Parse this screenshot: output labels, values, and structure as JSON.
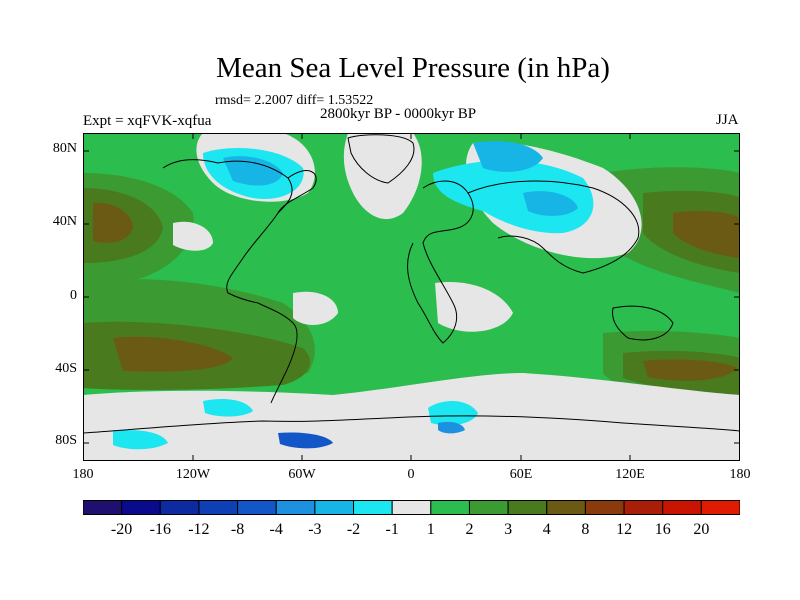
{
  "title": "Mean Sea Level Pressure (in hPa)",
  "stats": "rmsd= 2.2007 diff= 1.53522",
  "subtitle": "2800kyr BP - 0000kyr BP",
  "experiment": "Expt = xqFVK-xqfua",
  "season": "JJA",
  "lat_ticks": [
    "80N",
    "40N",
    "0",
    "40S",
    "80S"
  ],
  "lon_ticks": [
    "180",
    "120W",
    "60W",
    "0",
    "60E",
    "120E",
    "180"
  ],
  "colorbar": {
    "labels": [
      "-20",
      "-16",
      "-12",
      "-8",
      "-4",
      "-3",
      "-2",
      "-1",
      "1",
      "2",
      "3",
      "4",
      "8",
      "12",
      "16",
      "20"
    ],
    "colors": [
      "#1f1070",
      "#0a0a8c",
      "#0e2aa0",
      "#0f3fb4",
      "#1356c8",
      "#1e90e0",
      "#17b4e6",
      "#1ce6f0",
      "#e6e6e6",
      "#2bbd4d",
      "#3c9a32",
      "#4a7a1e",
      "#6b5a14",
      "#8a3a0c",
      "#a81e08",
      "#c81400",
      "#e01c00"
    ]
  },
  "colors": {
    "green": "#2bbd4d",
    "darkgreen": "#3c9a32",
    "olive": "#4a7a1e",
    "brown": "#6b5a14",
    "white": "#e6e6e6",
    "cyan": "#1ce6f0",
    "lightblue": "#17b4e6",
    "blue": "#1e90e0",
    "darkblue": "#0f3fb4"
  }
}
